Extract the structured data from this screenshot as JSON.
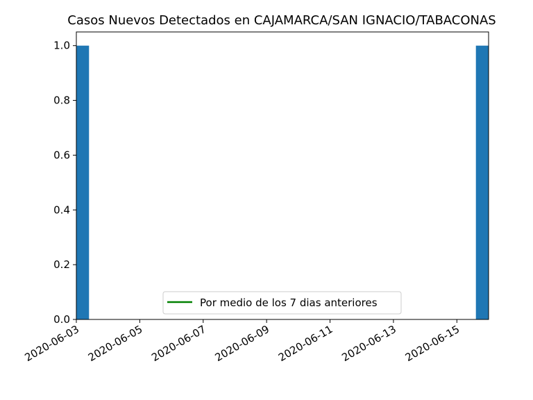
{
  "chart_data": {
    "type": "bar",
    "title": "Casos Nuevos Detectados en CAJAMARCA/SAN IGNACIO/TABACONAS",
    "xlabel": "",
    "ylabel": "",
    "x_type": "date",
    "xlim": [
      "2020-06-03",
      "2020-06-16"
    ],
    "ylim": [
      0,
      1.05
    ],
    "bars": [
      {
        "date": "2020-06-03",
        "value": 1.0
      },
      {
        "date": "2020-06-16",
        "value": 1.0
      }
    ],
    "bar_color": "#1f77b4",
    "x_ticks": [
      "2020-06-03",
      "2020-06-05",
      "2020-06-07",
      "2020-06-09",
      "2020-06-11",
      "2020-06-13",
      "2020-06-15"
    ],
    "y_ticks": [
      "0.0",
      "0.2",
      "0.4",
      "0.6",
      "0.8",
      "1.0"
    ],
    "series": [
      {
        "name": "Por medio de los 7 dias anteriores",
        "color": "#008000",
        "values": []
      }
    ],
    "legend_position": "lower-center",
    "grid": false
  }
}
